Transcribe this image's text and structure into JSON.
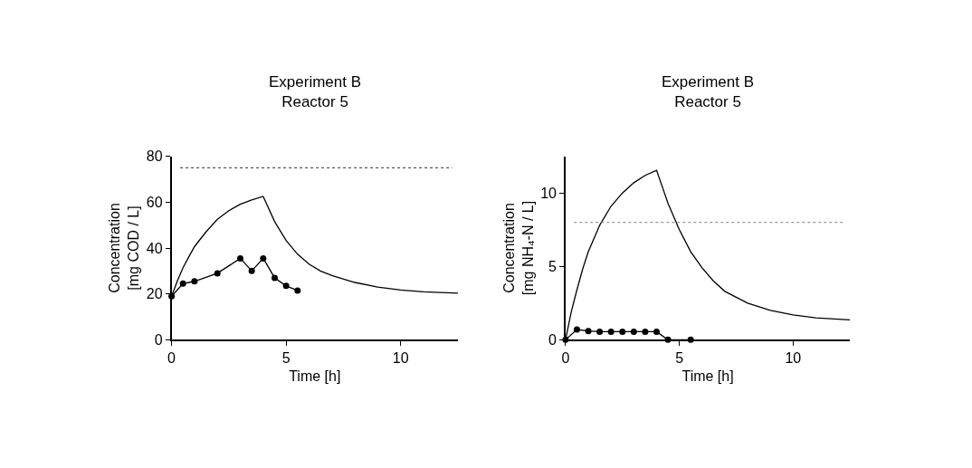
{
  "chart_data": [
    {
      "type": "line",
      "title": "Experiment B\nReactor 5",
      "xlabel": "Time [h]",
      "ylabel": "Concentration\n[mg COD / L]",
      "xlim": [
        0,
        12.5
      ],
      "xticks": [
        0,
        5,
        10
      ],
      "ylim": [
        0,
        80
      ],
      "yticks": [
        0,
        20,
        40,
        60,
        80
      ],
      "ref_lines": [
        {
          "axis": "y",
          "value": 75,
          "color": "#555555",
          "line_style": "dotted"
        }
      ],
      "series": [
        {
          "color": "#000000",
          "marker": "none",
          "x": [
            0,
            0.25,
            0.5,
            0.75,
            1,
            1.5,
            2,
            2.5,
            3,
            3.5,
            4,
            4.5,
            5,
            5.5,
            6,
            6.5,
            7,
            8,
            9,
            10,
            11,
            12.5
          ],
          "values": [
            19,
            25.6,
            31.4,
            36.1,
            40.6,
            47.0,
            52.5,
            56.3,
            59.1,
            61.0,
            62.5,
            51.5,
            43.3,
            37.3,
            33.0,
            30.0,
            28.0,
            25.0,
            23.0,
            21.7,
            20.9,
            20.3
          ]
        },
        {
          "color": "#000000",
          "marker": "circle",
          "x": [
            0,
            0.5,
            1,
            2,
            3,
            3.5,
            4,
            4.5,
            5,
            5.5
          ],
          "values": [
            19,
            24.5,
            25.5,
            29,
            35.5,
            30,
            35.5,
            27,
            23.5,
            21.5
          ]
        }
      ]
    },
    {
      "type": "line",
      "title": "Experiment B\nReactor 5",
      "xlabel": "Time [h]",
      "ylabel": "Concentration\n[mg NH₄-N / L]",
      "xlim": [
        0,
        12.5
      ],
      "xticks": [
        0,
        5,
        10
      ],
      "ylim": [
        0,
        12.5
      ],
      "yticks": [
        0,
        5,
        10
      ],
      "ref_lines": [
        {
          "axis": "y",
          "value": 8,
          "color": "#999999",
          "line_style": "dotted"
        }
      ],
      "series": [
        {
          "color": "#000000",
          "marker": "none",
          "x": [
            0,
            0.25,
            0.5,
            0.75,
            1,
            1.5,
            2,
            2.5,
            3,
            3.5,
            4,
            4.5,
            5,
            5.5,
            6,
            6.5,
            7,
            8,
            9,
            10,
            11,
            12.5
          ],
          "values": [
            0,
            1.9,
            3.4,
            4.8,
            6.0,
            7.8,
            9.1,
            10.0,
            10.7,
            11.2,
            11.55,
            9.3,
            7.5,
            6.0,
            4.9,
            4.0,
            3.3,
            2.5,
            2.0,
            1.7,
            1.5,
            1.35
          ]
        },
        {
          "color": "#000000",
          "marker": "circle",
          "x": [
            0,
            0.5,
            1,
            1.5,
            2,
            2.5,
            3,
            3.5,
            4,
            4.5,
            5.5
          ],
          "values": [
            0,
            0.7,
            0.6,
            0.55,
            0.55,
            0.55,
            0.55,
            0.55,
            0.55,
            0,
            0
          ]
        }
      ]
    }
  ]
}
